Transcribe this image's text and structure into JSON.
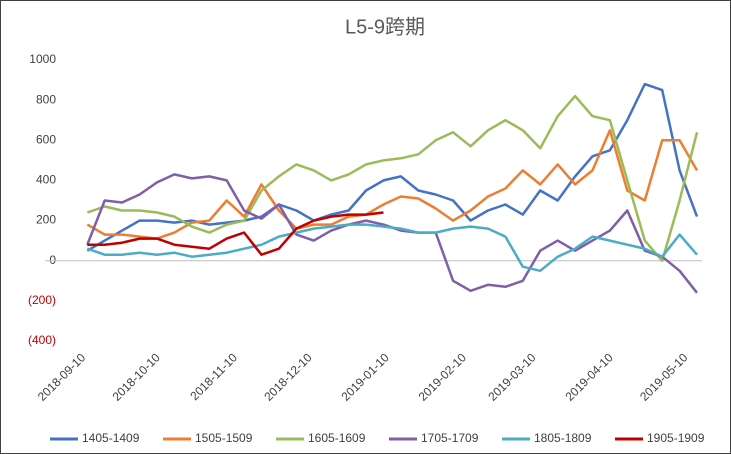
{
  "chart_data": {
    "type": "line",
    "title": "L5-9跨期",
    "x": [
      "2018-09-13",
      "2018-09-20",
      "2018-09-27",
      "2018-10-04",
      "2018-10-11",
      "2018-10-18",
      "2018-10-25",
      "2018-11-01",
      "2018-11-08",
      "2018-11-15",
      "2018-11-22",
      "2018-11-29",
      "2018-12-06",
      "2018-12-13",
      "2018-12-20",
      "2018-12-27",
      "2019-01-03",
      "2019-01-10",
      "2019-01-17",
      "2019-01-24",
      "2019-01-31",
      "2019-02-07",
      "2019-02-14",
      "2019-02-21",
      "2019-02-28",
      "2019-03-07",
      "2019-03-14",
      "2019-03-21",
      "2019-03-28",
      "2019-04-04",
      "2019-04-11",
      "2019-04-18",
      "2019-04-25",
      "2019-05-02",
      "2019-05-09",
      "2019-05-16"
    ],
    "xlim": [
      "2018-08-27",
      "2019-05-18"
    ],
    "xticks": [
      "2018-09-10",
      "2018-10-10",
      "2018-11-10",
      "2018-12-10",
      "2019-01-10",
      "2019-02-10",
      "2019-03-10",
      "2019-04-10",
      "2019-05-10"
    ],
    "ylim": [
      -400,
      1000
    ],
    "yticks": [
      {
        "value": -400,
        "label": "(400)"
      },
      {
        "value": -200,
        "label": "(200)"
      },
      0,
      200,
      400,
      600,
      800,
      1000
    ],
    "negative_tick_color": "#c00000",
    "grid": false,
    "legend": "bottom",
    "series": [
      {
        "name": "1405-1409",
        "color": "#4472c4",
        "values": [
          50,
          100,
          150,
          200,
          200,
          190,
          200,
          180,
          190,
          200,
          220,
          280,
          250,
          200,
          230,
          250,
          350,
          400,
          420,
          350,
          330,
          300,
          200,
          250,
          280,
          230,
          350,
          300,
          420,
          520,
          550,
          700,
          880,
          850,
          450,
          220
        ]
      },
      {
        "name": "1505-1509",
        "color": "#ed7d31",
        "values": [
          180,
          130,
          130,
          120,
          110,
          140,
          190,
          200,
          300,
          220,
          380,
          250,
          160,
          180,
          180,
          220,
          230,
          280,
          320,
          310,
          260,
          200,
          250,
          320,
          360,
          450,
          380,
          480,
          380,
          450,
          650,
          350,
          300,
          600,
          600,
          450
        ]
      },
      {
        "name": "1605-1609",
        "color": "#9bbb59",
        "values": [
          240,
          270,
          250,
          250,
          240,
          220,
          170,
          140,
          180,
          200,
          350,
          420,
          480,
          450,
          400,
          430,
          480,
          500,
          510,
          530,
          600,
          640,
          570,
          650,
          700,
          650,
          560,
          720,
          820,
          720,
          700,
          400,
          100,
          0,
          300,
          640
        ]
      },
      {
        "name": "1705-1709",
        "color": "#7f5fa8",
        "values": [
          80,
          300,
          290,
          330,
          390,
          430,
          410,
          420,
          400,
          250,
          210,
          280,
          130,
          100,
          150,
          180,
          200,
          180,
          150,
          140,
          140,
          -100,
          -150,
          -120,
          -130,
          -100,
          50,
          100,
          50,
          100,
          150,
          250,
          50,
          20,
          -50,
          -160
        ]
      },
      {
        "name": "1805-1809",
        "color": "#4bacc6",
        "values": [
          60,
          30,
          30,
          40,
          30,
          40,
          20,
          30,
          40,
          60,
          80,
          120,
          140,
          160,
          170,
          180,
          180,
          170,
          160,
          140,
          140,
          160,
          170,
          160,
          120,
          -30,
          -50,
          20,
          60,
          120,
          100,
          80,
          60,
          20,
          130,
          30
        ]
      },
      {
        "name": "1905-1909",
        "color": "#c00000",
        "values": [
          80,
          80,
          90,
          110,
          110,
          80,
          70,
          60,
          110,
          140,
          30,
          60,
          160,
          200,
          220,
          230,
          230,
          240,
          null,
          null,
          null,
          null,
          null,
          null,
          null,
          null,
          null,
          null,
          null,
          null,
          null,
          null,
          null,
          null,
          null,
          null
        ]
      }
    ]
  }
}
